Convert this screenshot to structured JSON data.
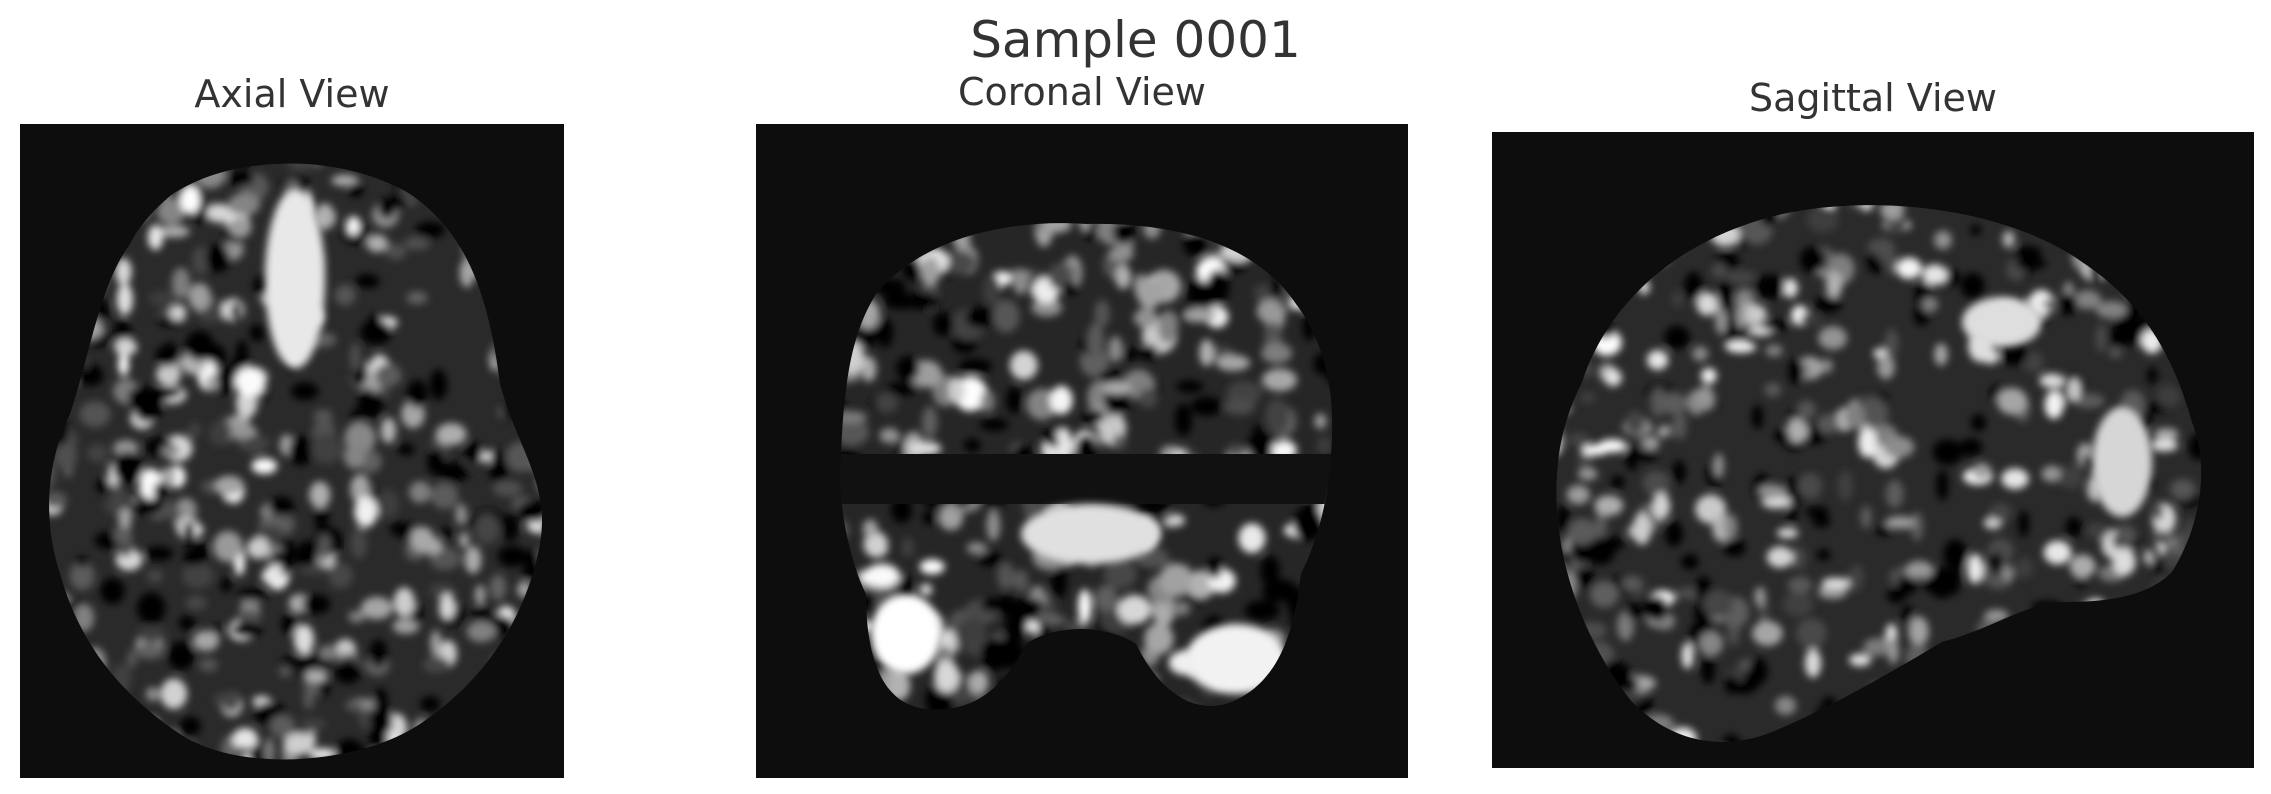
{
  "figure": {
    "title": "Sample 0001"
  },
  "panels": [
    {
      "title": "Axial View"
    },
    {
      "title": "Coronal View"
    },
    {
      "title": "Sagittal View"
    }
  ],
  "colors": {
    "background": "#0d0d0d",
    "tissue_light": "#e6e6e6",
    "tissue_mid": "#8a8a8a"
  }
}
